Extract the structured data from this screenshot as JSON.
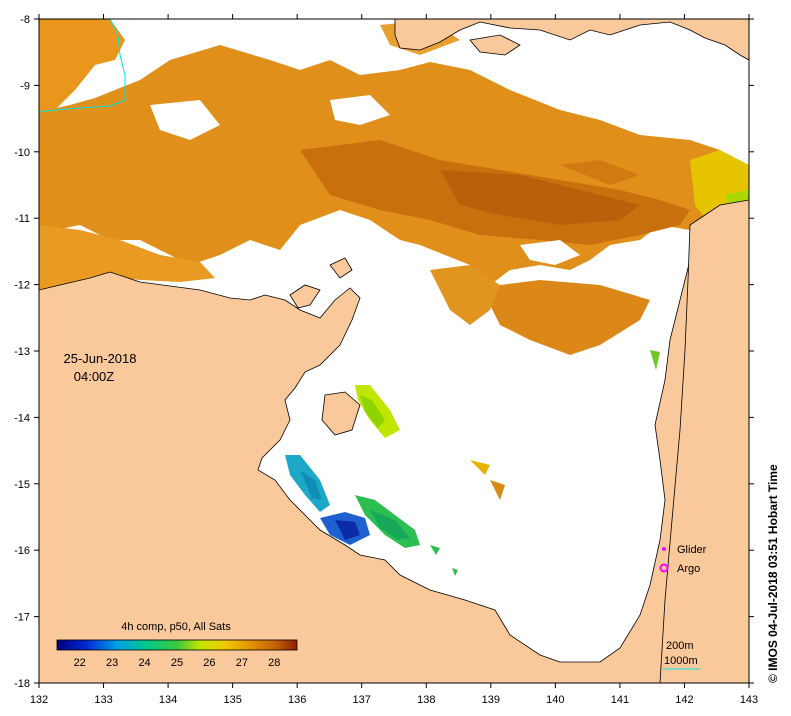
{
  "map": {
    "date": "25-Jun-2018",
    "time": "04:00Z",
    "x_ticks": [
      "132",
      "133",
      "134",
      "135",
      "136",
      "137",
      "138",
      "139",
      "140",
      "141",
      "142",
      "143"
    ],
    "y_ticks": [
      "-8",
      "-9",
      "-10",
      "-11",
      "-12",
      "-13",
      "-14",
      "-15",
      "-16",
      "-17",
      "-18"
    ],
    "colorbar_title": "4h comp, p50, All Sats",
    "colorbar_ticks": [
      "22",
      "23",
      "24",
      "25",
      "26",
      "27",
      "28"
    ],
    "legend": {
      "glider": "Glider",
      "argo": "Argo",
      "contour_200": "200m",
      "contour_1000": "1000m"
    },
    "credit": "© IMOS 04-Jul-2018 03:51 Hobart Time",
    "colors": {
      "land": "#f9c89b",
      "sea": "#ffffff",
      "marker": "#ff00ff",
      "contour": "#00e5e5"
    }
  }
}
